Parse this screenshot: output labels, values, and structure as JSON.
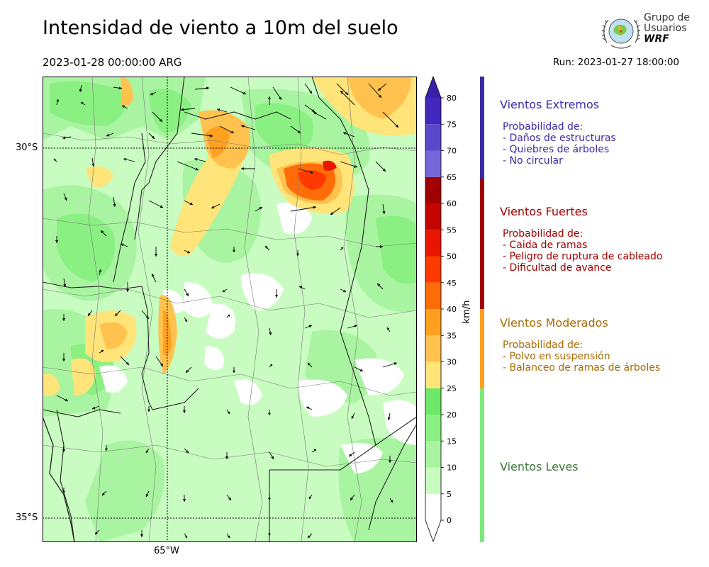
{
  "header": {
    "title": "Intensidad de viento a 10m del suelo",
    "valid_time": "2023-01-28 00:00:00 ARG",
    "run": "Run: 2023-01-27 18:00:00"
  },
  "logo": {
    "line1": "Grupo de",
    "line2": "Usuarios",
    "line3": "WRF"
  },
  "map": {
    "lat_labels": [
      "30°S",
      "35°S"
    ],
    "lon_label": "65°W"
  },
  "colorbar": {
    "unit": "km/h",
    "ticks": [
      "0",
      "5",
      "10",
      "15",
      "20",
      "25",
      "30",
      "35",
      "40",
      "45",
      "50",
      "55",
      "60",
      "65",
      "70",
      "75",
      "80"
    ],
    "colors": [
      "#ffffff",
      "#c8fcc0",
      "#a8f4a0",
      "#8af082",
      "#6ee868",
      "#ffe47a",
      "#ffc24e",
      "#ffa020",
      "#ff6c08",
      "#ff3a00",
      "#e81600",
      "#c40400",
      "#a00000",
      "#7566da",
      "#5a48cc",
      "#4228bc"
    ],
    "extend_max_color": "#3a20a8"
  },
  "categories": [
    {
      "name": "Vientos Extremos",
      "color": "#3a2aa8",
      "details": [
        "Probabilidad de:",
        "- Daños de estructuras",
        "- Quiebres de árboles",
        "- No circular"
      ]
    },
    {
      "name": "Vientos Fuertes",
      "color": "#a00000",
      "details": [
        "Probabilidad de:",
        "- Caida de ramas",
        "- Peligro de ruptura de cableado",
        "- Dificultad de avance"
      ]
    },
    {
      "name": "Vientos Moderados",
      "color": "#a86a00",
      "details": [
        "Probabilidad de:",
        "- Polvo en suspensión",
        "- Balanceo de ramas de árboles"
      ]
    },
    {
      "name": "Vientos Leves",
      "color": "#3c7a3c",
      "details": []
    }
  ],
  "category_bar_colors": [
    "#3a2aa8",
    "#a00000",
    "#ffa020",
    "#7ee878"
  ]
}
